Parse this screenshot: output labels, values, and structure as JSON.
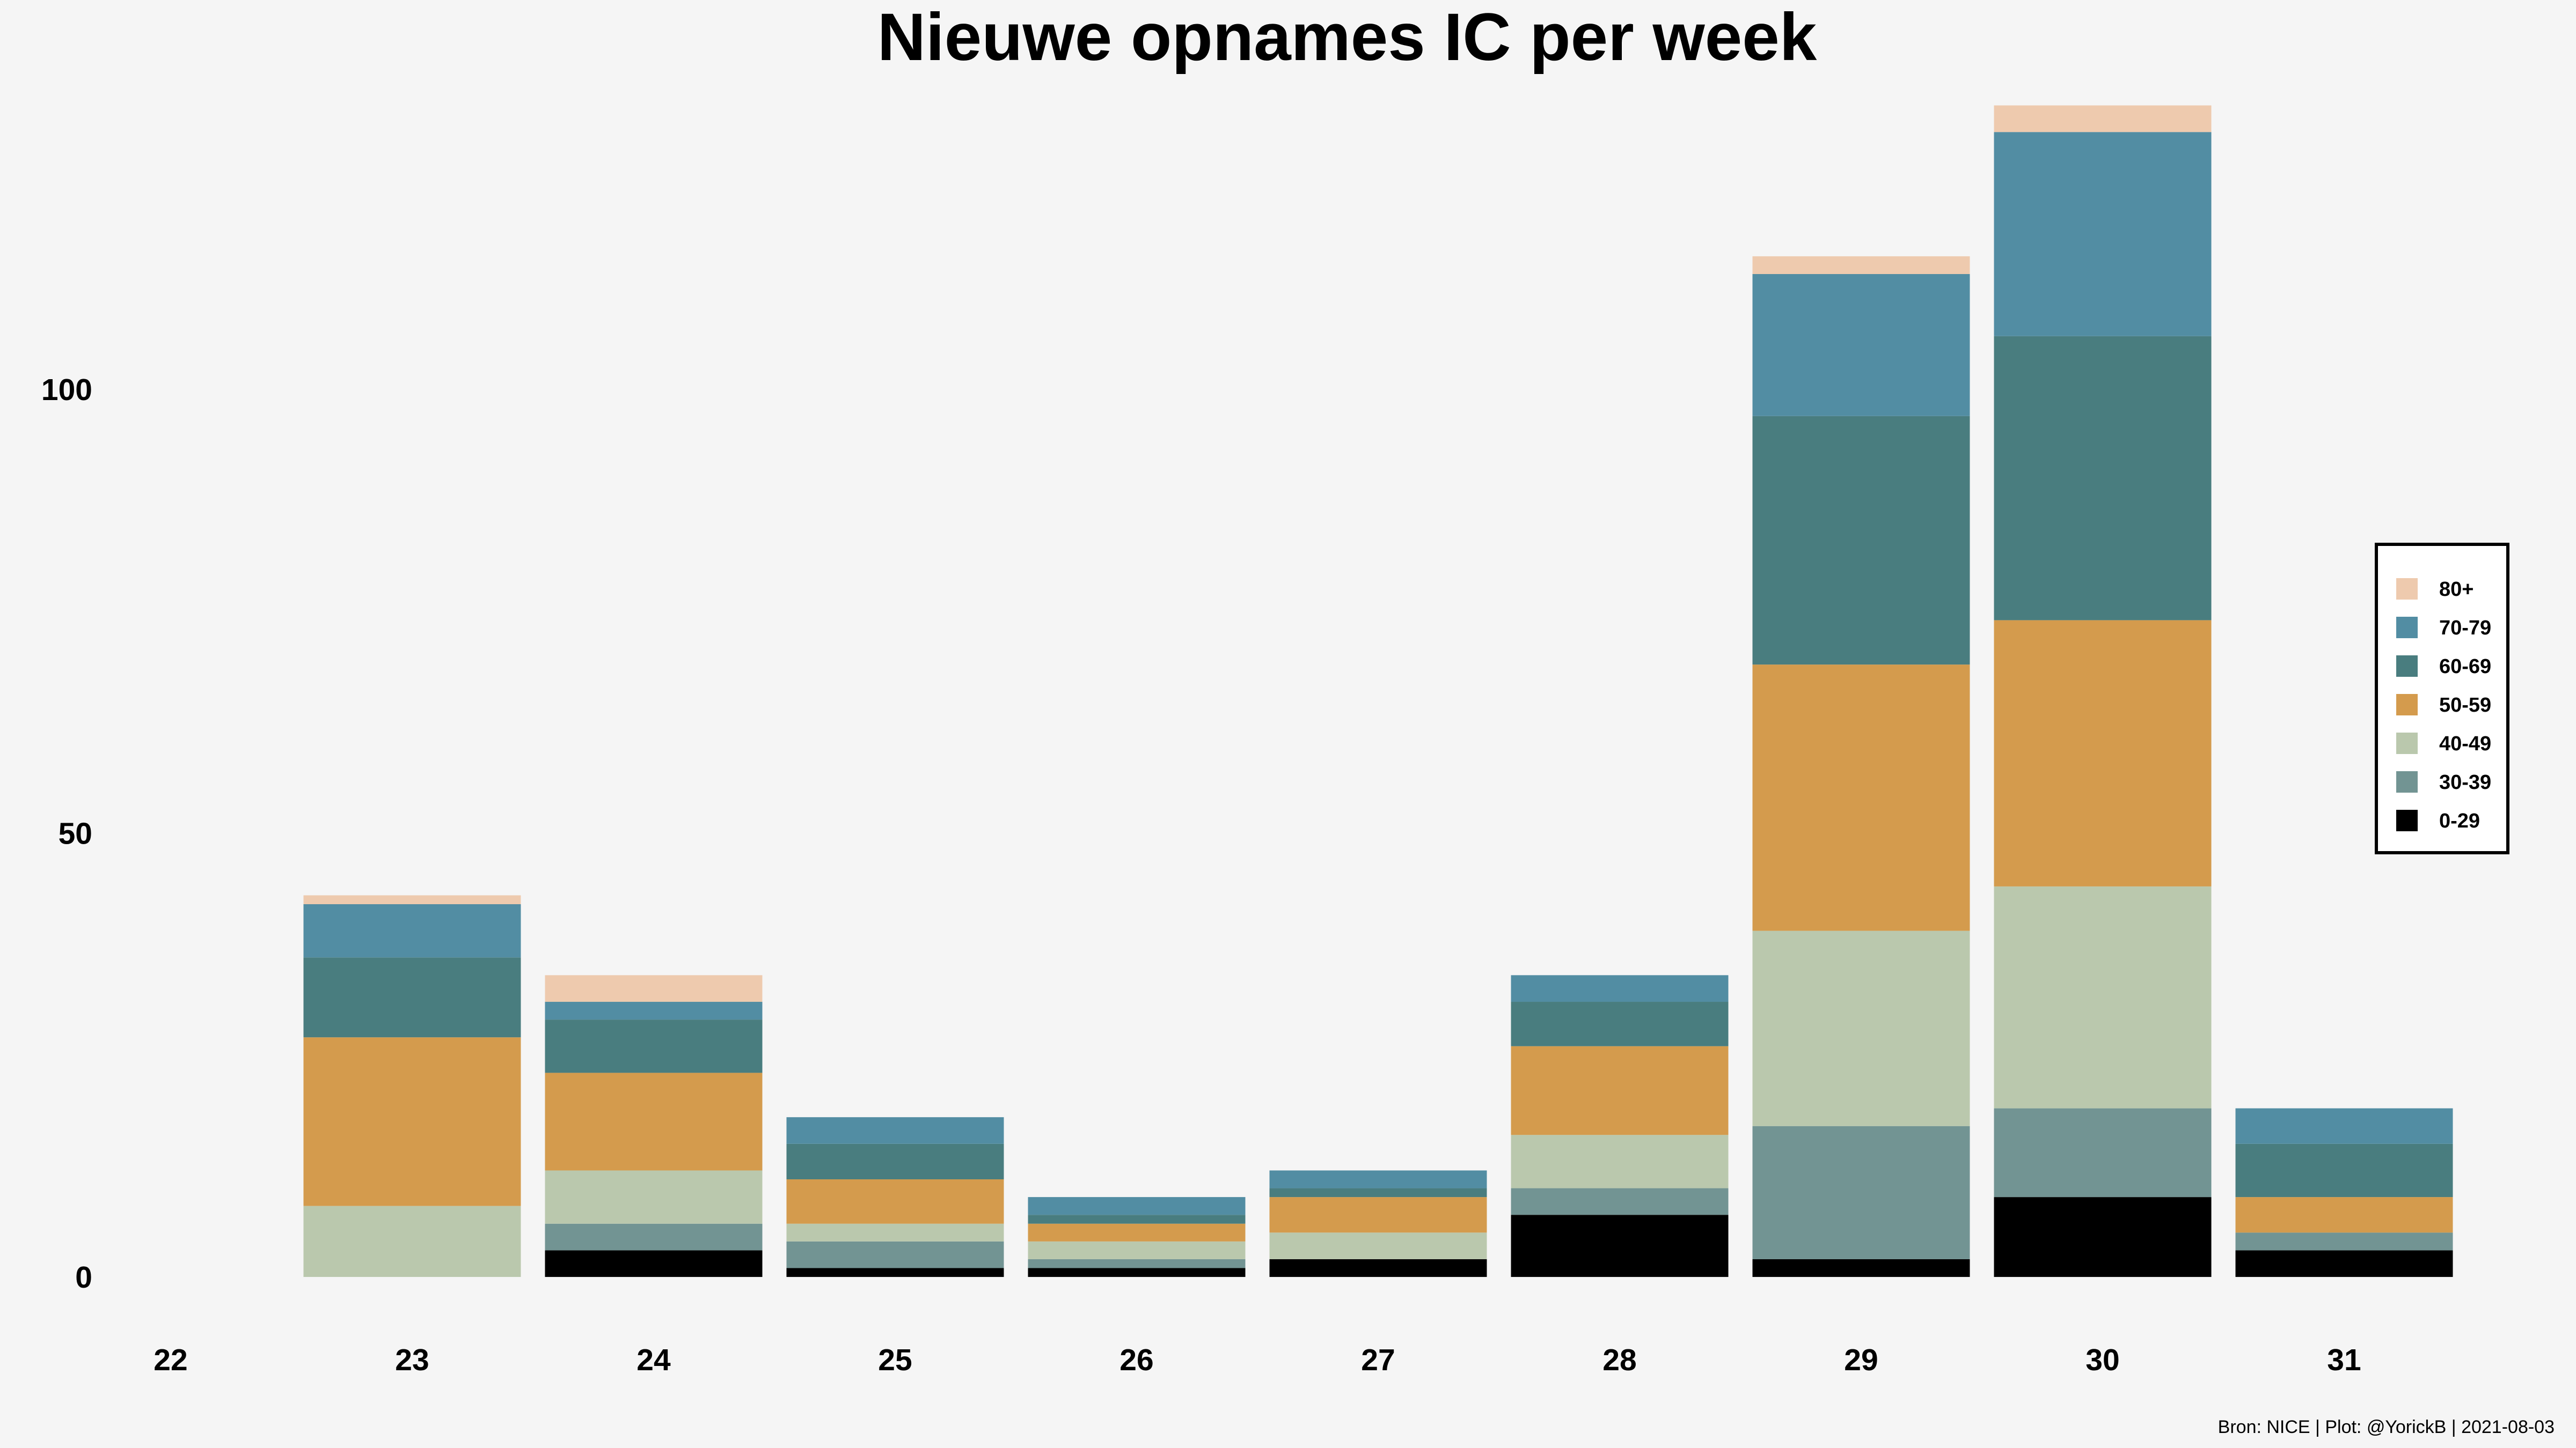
{
  "chart_data": {
    "type": "bar",
    "stacked": true,
    "title": "Nieuwe opnames IC per week",
    "xlabel": "",
    "ylabel": "",
    "categories": [
      "22",
      "23",
      "24",
      "25",
      "26",
      "27",
      "28",
      "29",
      "30",
      "31"
    ],
    "yticks": [
      0,
      50,
      100
    ],
    "ylim": [
      -9,
      133
    ],
    "grid": false,
    "legend_position": "right",
    "series": [
      {
        "name": "0-29",
        "color": "#000000",
        "values": [
          0,
          0,
          3,
          1,
          1,
          2,
          7,
          2,
          9,
          3
        ]
      },
      {
        "name": "30-39",
        "color": "#729493",
        "values": [
          0,
          0,
          3,
          3,
          1,
          0,
          3,
          15,
          10,
          2
        ]
      },
      {
        "name": "40-49",
        "color": "#bac8ad",
        "values": [
          0,
          8,
          6,
          2,
          2,
          3,
          6,
          22,
          25,
          0
        ]
      },
      {
        "name": "50-59",
        "color": "#d49b4d",
        "values": [
          0,
          19,
          11,
          5,
          2,
          4,
          10,
          30,
          30,
          4
        ]
      },
      {
        "name": "60-69",
        "color": "#497d7f",
        "values": [
          0,
          9,
          6,
          4,
          1,
          1,
          5,
          28,
          32,
          6
        ]
      },
      {
        "name": "70-79",
        "color": "#528da3",
        "values": [
          0,
          6,
          2,
          3,
          2,
          2,
          3,
          16,
          23,
          4
        ]
      },
      {
        "name": "80+",
        "color": "#eecaae",
        "values": [
          0,
          1,
          3,
          0,
          0,
          0,
          0,
          2,
          3,
          0
        ]
      }
    ],
    "caption": "Bron: NICE | Plot: @YorickB |  2021-08-03"
  }
}
